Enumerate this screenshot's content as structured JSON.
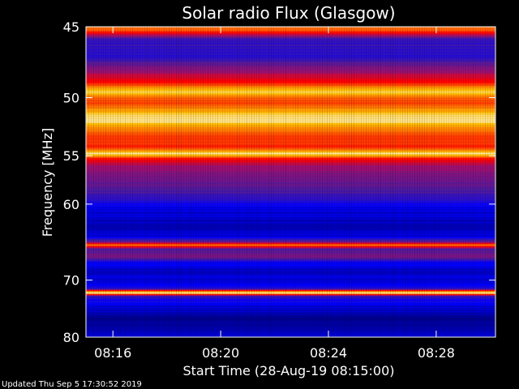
{
  "chart_data": {
    "type": "heatmap",
    "title": "Solar radio Flux (Glasgow)",
    "xlabel": "Start Time (28-Aug-19 08:15:00)",
    "ylabel": "Frequency [MHz]",
    "x_ticks": [
      "08:16",
      "08:20",
      "08:24",
      "08:28"
    ],
    "x_tick_minutes": [
      16,
      20,
      24,
      28
    ],
    "xlim_minutes": [
      15,
      30.2
    ],
    "y_ticks": [
      45,
      50,
      55,
      60,
      70,
      80
    ],
    "ylim": [
      45,
      80
    ],
    "y_scale": "reciprocal",
    "colormap": [
      "#000080",
      "#0000ff",
      "#4a1aa0",
      "#a0106a",
      "#ff0000",
      "#ff6a00",
      "#ffc000",
      "#ffffff"
    ],
    "frequency_profile": [
      {
        "mhz": 45.2,
        "level": 0.72
      },
      {
        "mhz": 45.8,
        "level": 0.25
      },
      {
        "mhz": 47.0,
        "level": 0.22
      },
      {
        "mhz": 48.0,
        "level": 0.42
      },
      {
        "mhz": 48.8,
        "level": 0.58
      },
      {
        "mhz": 49.6,
        "level": 0.92
      },
      {
        "mhz": 50.0,
        "level": 0.7
      },
      {
        "mhz": 50.5,
        "level": 0.66
      },
      {
        "mhz": 51.2,
        "level": 0.86
      },
      {
        "mhz": 51.8,
        "level": 0.96
      },
      {
        "mhz": 52.4,
        "level": 0.8
      },
      {
        "mhz": 53.2,
        "level": 0.66
      },
      {
        "mhz": 54.2,
        "level": 0.62
      },
      {
        "mhz": 54.8,
        "level": 0.95
      },
      {
        "mhz": 55.3,
        "level": 0.58
      },
      {
        "mhz": 56.0,
        "level": 0.42
      },
      {
        "mhz": 57.0,
        "level": 0.36
      },
      {
        "mhz": 58.5,
        "level": 0.3
      },
      {
        "mhz": 59.5,
        "level": 0.22
      },
      {
        "mhz": 60.5,
        "level": 0.12
      },
      {
        "mhz": 61.5,
        "level": 0.1
      },
      {
        "mhz": 62.8,
        "level": 0.06
      },
      {
        "mhz": 63.8,
        "level": 0.1
      },
      {
        "mhz": 64.5,
        "level": 0.3
      },
      {
        "mhz": 65.0,
        "level": 0.72
      },
      {
        "mhz": 65.6,
        "level": 0.28
      },
      {
        "mhz": 66.5,
        "level": 0.38
      },
      {
        "mhz": 67.5,
        "level": 0.14
      },
      {
        "mhz": 68.5,
        "level": 0.08
      },
      {
        "mhz": 69.5,
        "level": 0.1
      },
      {
        "mhz": 70.5,
        "level": 0.12
      },
      {
        "mhz": 71.3,
        "level": 0.2
      },
      {
        "mhz": 72.0,
        "level": 1.0
      },
      {
        "mhz": 72.6,
        "level": 0.22
      },
      {
        "mhz": 74.0,
        "level": 0.12
      },
      {
        "mhz": 75.5,
        "level": 0.06
      },
      {
        "mhz": 76.8,
        "level": 0.02
      },
      {
        "mhz": 78.0,
        "level": 0.06
      },
      {
        "mhz": 79.5,
        "level": 0.08
      }
    ],
    "grid": false
  },
  "footer": {
    "updated": "Updated Thu Sep  5 17:30:52 2019"
  }
}
